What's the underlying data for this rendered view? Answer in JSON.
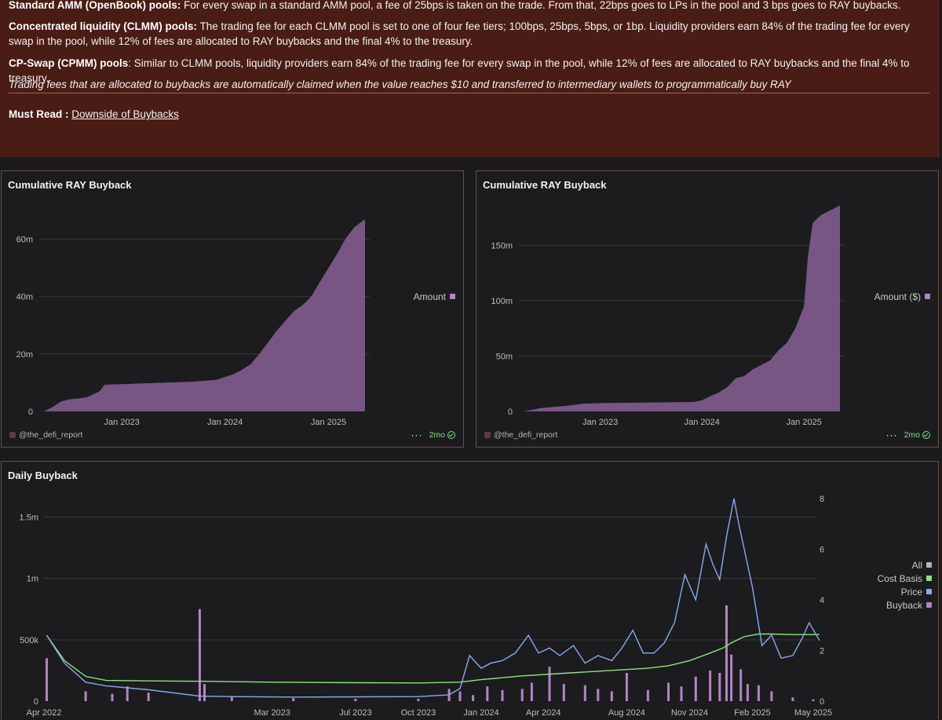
{
  "note": {
    "p1_bold": "Standard AMM (OpenBook) pools:",
    "p1_text": " For every swap in a standard AMM pool, a fee of 25bps is taken on the trade. From that, 22bps goes to LPs in the pool and 3 bps goes to RAY buybacks.",
    "p2_bold": "Concentrated liquidity (CLMM) pools:",
    "p2_text": " The trading fee for each CLMM pool is set to one of four fee tiers; 100bps, 25bps, 5bps, or 1bp. Liquidity providers earn 84% of the trading fee for every swap in the pool, while 12% of fees are allocated to RAY buybacks and the final 4% to the treasury.",
    "p3_bold": "CP-Swap (CPMM) pools",
    "p3_text": ": Similar to CLMM pools, liquidity providers earn 84% of the trading fee for every swap in the pool, while 12% of fees are allocated to RAY buybacks and the final 4% to treasury.",
    "p4_text": "Trading fees that are allocated to buybacks are automatically claimed when the value reaches $10 and transferred to intermediary wallets to programmatically buy RAY",
    "must_read_label": "Must Read :",
    "must_read_link": "Downside of Buybacks"
  },
  "footer": {
    "author": "@the_defi_report",
    "menu": "···",
    "badge": "2mo"
  },
  "colors": {
    "purple": "#b383c4",
    "purple_fill": "#7c5a8a",
    "blue": "#8aa8ef",
    "green": "#8ee27d",
    "gray": "#b5b5b5",
    "grid": "#3a3a3c",
    "axis_text": "#bdbdbd"
  },
  "chart_data": [
    {
      "type": "area",
      "title": "Cumulative RAY Buyback",
      "legend": [
        "Amount"
      ],
      "legend_position": "right",
      "x_ticks": [
        "Jan 2023",
        "Jan 2024",
        "Jan 2025"
      ],
      "y_ticks": [
        "0",
        "20m",
        "40m",
        "60m"
      ],
      "ylim": [
        0,
        70000000
      ],
      "x": [
        "2022-04-01",
        "2022-05-01",
        "2022-06-01",
        "2022-07-01",
        "2022-08-01",
        "2022-09-01",
        "2022-10-15",
        "2022-11-01",
        "2023-01-01",
        "2023-03-01",
        "2023-06-01",
        "2023-09-01",
        "2023-12-01",
        "2024-02-01",
        "2024-03-01",
        "2024-04-01",
        "2024-05-01",
        "2024-06-01",
        "2024-07-01",
        "2024-08-01",
        "2024-09-01",
        "2024-10-01",
        "2024-11-01",
        "2024-12-01",
        "2025-01-01",
        "2025-02-01",
        "2025-03-01",
        "2025-04-01",
        "2025-05-10"
      ],
      "values": [
        0,
        1500000,
        3500000,
        4200000,
        4500000,
        5000000,
        7000000,
        9300000,
        9500000,
        9700000,
        10000000,
        10300000,
        11000000,
        13000000,
        14500000,
        16500000,
        20000000,
        24000000,
        28000000,
        31500000,
        35000000,
        37000000,
        40000000,
        45000000,
        50000000,
        55000000,
        60000000,
        64000000,
        67000000
      ]
    },
    {
      "type": "area",
      "title": "Cumulative RAY Buyback",
      "legend": [
        "Amount ($)"
      ],
      "legend_position": "right",
      "x_ticks": [
        "Jan 2023",
        "Jan 2024",
        "Jan 2025"
      ],
      "y_ticks": [
        "0",
        "50m",
        "100m",
        "150m"
      ],
      "ylim": [
        0,
        185000000
      ],
      "x": [
        "2022-04-01",
        "2022-06-01",
        "2022-09-01",
        "2022-11-01",
        "2023-01-01",
        "2023-06-01",
        "2023-12-01",
        "2024-01-01",
        "2024-02-01",
        "2024-03-01",
        "2024-04-01",
        "2024-05-01",
        "2024-06-01",
        "2024-07-01",
        "2024-08-01",
        "2024-09-01",
        "2024-10-01",
        "2024-11-01",
        "2024-12-01",
        "2025-01-01",
        "2025-01-15",
        "2025-02-01",
        "2025-03-01",
        "2025-04-01",
        "2025-05-10"
      ],
      "values": [
        0,
        3000000,
        5000000,
        7000000,
        7500000,
        8000000,
        8500000,
        10000000,
        14000000,
        17000000,
        22000000,
        30000000,
        32000000,
        38000000,
        42000000,
        46000000,
        55000000,
        62000000,
        75000000,
        95000000,
        140000000,
        170000000,
        177000000,
        181000000,
        186000000
      ]
    },
    {
      "type": "bar+line",
      "title": "Daily Buyback",
      "legend": [
        "All",
        "Cost Basis",
        "Price",
        "Buyback"
      ],
      "legend_position": "right",
      "x_ticks": [
        "Apr 2022",
        "Mar 2023",
        "Jul 2023",
        "Oct 2023",
        "Jan 2024",
        "Apr 2024",
        "Aug 2024",
        "Nov 2024",
        "Feb 2025",
        "May 2025"
      ],
      "y_left_ticks": [
        "0",
        "500k",
        "1m",
        "1.5m"
      ],
      "y_right_ticks": [
        "0",
        "2",
        "4",
        "6",
        "8"
      ],
      "ylim_left": [
        0,
        1650000
      ],
      "ylim_right": [
        0,
        8
      ],
      "bars": {
        "name": "Buyback",
        "x": [
          "2022-04-05",
          "2022-06-01",
          "2022-07-10",
          "2022-08-01",
          "2022-09-01",
          "2022-11-15",
          "2022-11-22",
          "2023-01-01",
          "2023-04-01",
          "2023-07-01",
          "2023-10-01",
          "2023-11-15",
          "2023-12-01",
          "2023-12-20",
          "2024-01-10",
          "2024-02-01",
          "2024-03-01",
          "2024-03-15",
          "2024-04-10",
          "2024-05-01",
          "2024-06-01",
          "2024-06-20",
          "2024-07-10",
          "2024-08-01",
          "2024-09-01",
          "2024-10-01",
          "2024-10-20",
          "2024-11-10",
          "2024-12-01",
          "2024-12-15",
          "2024-12-25",
          "2025-01-01",
          "2025-01-15",
          "2025-01-25",
          "2025-02-10",
          "2025-03-01",
          "2025-04-01",
          "2025-05-01"
        ],
        "values": [
          350000,
          80000,
          60000,
          120000,
          70000,
          750000,
          140000,
          40000,
          25000,
          20000,
          20000,
          100000,
          80000,
          50000,
          120000,
          90000,
          100000,
          150000,
          280000,
          140000,
          130000,
          100000,
          80000,
          230000,
          90000,
          150000,
          120000,
          200000,
          250000,
          230000,
          780000,
          380000,
          260000,
          140000,
          130000,
          80000,
          30000,
          15000
        ]
      },
      "series": [
        {
          "name": "Cost Basis",
          "x": [
            "2022-04-05",
            "2022-05-01",
            "2022-06-01",
            "2022-07-01",
            "2022-09-01",
            "2022-12-01",
            "2023-03-01",
            "2023-07-01",
            "2023-10-01",
            "2023-12-01",
            "2024-01-01",
            "2024-03-01",
            "2024-05-01",
            "2024-07-01",
            "2024-09-01",
            "2024-10-01",
            "2024-11-01",
            "2024-12-01",
            "2024-12-20",
            "2025-01-01",
            "2025-01-20",
            "2025-02-10",
            "2025-03-01",
            "2025-04-01",
            "2025-05-10"
          ],
          "values": [
            2.6,
            1.6,
            0.98,
            0.82,
            0.8,
            0.78,
            0.75,
            0.73,
            0.72,
            0.75,
            0.85,
            1.0,
            1.1,
            1.2,
            1.3,
            1.4,
            1.6,
            1.9,
            2.1,
            2.3,
            2.55,
            2.65,
            2.65,
            2.63,
            2.63
          ]
        },
        {
          "name": "Price",
          "x": [
            "2022-04-05",
            "2022-05-01",
            "2022-06-01",
            "2022-07-01",
            "2022-09-01",
            "2022-11-15",
            "2023-01-01",
            "2023-04-01",
            "2023-07-01",
            "2023-10-01",
            "2023-11-15",
            "2023-12-01",
            "2023-12-15",
            "2024-01-01",
            "2024-01-15",
            "2024-02-01",
            "2024-02-20",
            "2024-03-10",
            "2024-03-25",
            "2024-04-10",
            "2024-04-25",
            "2024-05-15",
            "2024-06-01",
            "2024-06-20",
            "2024-07-10",
            "2024-07-25",
            "2024-08-10",
            "2024-08-25",
            "2024-09-10",
            "2024-09-25",
            "2024-10-10",
            "2024-10-25",
            "2024-11-10",
            "2024-11-25",
            "2024-12-05",
            "2024-12-15",
            "2024-12-25",
            "2025-01-05",
            "2025-01-12",
            "2025-01-20",
            "2025-02-01",
            "2025-02-15",
            "2025-03-01",
            "2025-03-15",
            "2025-04-01",
            "2025-04-15",
            "2025-04-25",
            "2025-05-10"
          ],
          "values": [
            2.6,
            1.5,
            0.75,
            0.6,
            0.45,
            0.2,
            0.18,
            0.16,
            0.17,
            0.18,
            0.25,
            0.5,
            1.8,
            1.3,
            1.5,
            1.6,
            1.9,
            2.6,
            1.9,
            2.1,
            1.8,
            2.2,
            1.5,
            1.8,
            1.6,
            2.1,
            2.8,
            1.9,
            1.9,
            2.3,
            3.1,
            5.0,
            4.0,
            6.2,
            5.4,
            4.8,
            6.5,
            8.0,
            7.0,
            6.0,
            4.5,
            2.2,
            2.6,
            1.7,
            1.8,
            2.5,
            3.1,
            2.4
          ]
        }
      ]
    }
  ]
}
